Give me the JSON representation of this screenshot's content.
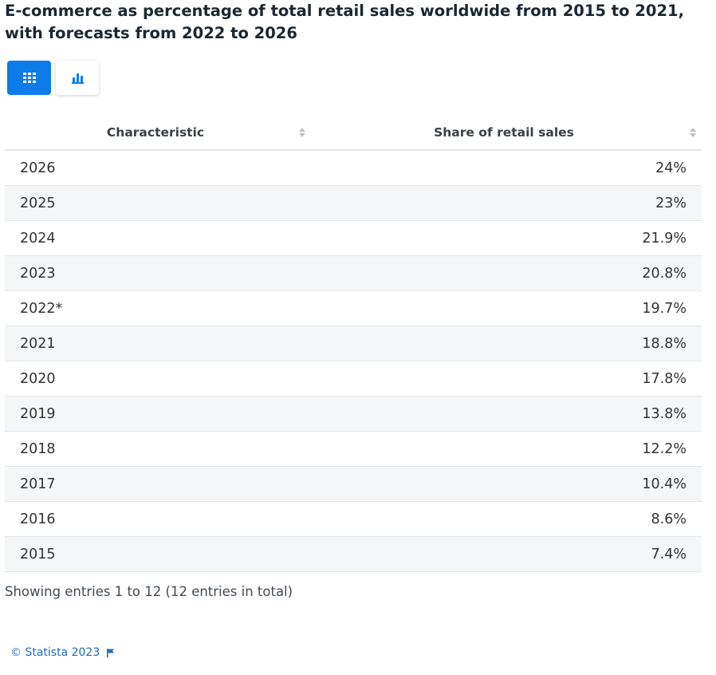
{
  "title": "E-commerce as percentage of total retail sales worldwide from 2015 to 2021, with forecasts from 2022 to 2026",
  "view_toggle": {
    "table_icon": "grid-icon",
    "chart_icon": "bar-chart-icon",
    "active_color": "#0d7ce8"
  },
  "table": {
    "headers": [
      "Characteristic",
      "Share of retail sales"
    ],
    "rows": [
      {
        "year": "2026",
        "value": "24%"
      },
      {
        "year": "2025",
        "value": "23%"
      },
      {
        "year": "2024",
        "value": "21.9%"
      },
      {
        "year": "2023",
        "value": "20.8%"
      },
      {
        "year": "2022*",
        "value": "19.7%"
      },
      {
        "year": "2021",
        "value": "18.8%"
      },
      {
        "year": "2020",
        "value": "17.8%"
      },
      {
        "year": "2019",
        "value": "13.8%"
      },
      {
        "year": "2018",
        "value": "12.2%"
      },
      {
        "year": "2017",
        "value": "10.4%"
      },
      {
        "year": "2016",
        "value": "8.6%"
      },
      {
        "year": "2015",
        "value": "7.4%"
      }
    ]
  },
  "entries_info": "Showing entries 1 to 12 (12 entries in total)",
  "copyright": "© Statista 2023",
  "copyright_icon": "flag-icon"
}
